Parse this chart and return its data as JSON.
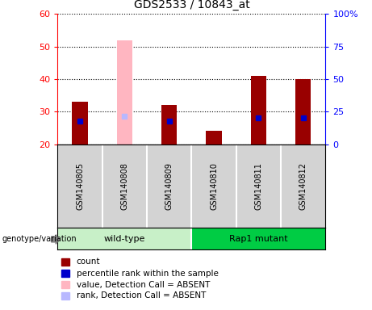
{
  "title": "GDS2533 / 10843_at",
  "samples": [
    "GSM140805",
    "GSM140808",
    "GSM140809",
    "GSM140810",
    "GSM140811",
    "GSM140812"
  ],
  "count_values": [
    33,
    null,
    32,
    24,
    41,
    40
  ],
  "rank_values": [
    27,
    null,
    27,
    null,
    28,
    28
  ],
  "absent_value_values": [
    null,
    52,
    null,
    null,
    null,
    null
  ],
  "absent_rank_values": [
    null,
    28.5,
    null,
    null,
    null,
    null
  ],
  "ylim_left": [
    20,
    60
  ],
  "ylim_right": [
    0,
    100
  ],
  "yticks_left": [
    20,
    30,
    40,
    50,
    60
  ],
  "yticks_right": [
    0,
    25,
    50,
    75,
    100
  ],
  "yticklabels_right": [
    "0",
    "25",
    "50",
    "75",
    "100%"
  ],
  "bar_width": 0.35,
  "count_color": "#990000",
  "rank_color": "#0000cc",
  "absent_value_color": "#ffb6c1",
  "absent_rank_color": "#b8b8ff",
  "sample_bg_color": "#d3d3d3",
  "plot_bg_color": "#ffffff",
  "wildtype_color": "#c8f0c8",
  "rapmutant_color": "#00cc44",
  "legend_items": [
    {
      "label": "count",
      "color": "#990000"
    },
    {
      "label": "percentile rank within the sample",
      "color": "#0000cc"
    },
    {
      "label": "value, Detection Call = ABSENT",
      "color": "#ffb6c1"
    },
    {
      "label": "rank, Detection Call = ABSENT",
      "color": "#b8b8ff"
    }
  ]
}
